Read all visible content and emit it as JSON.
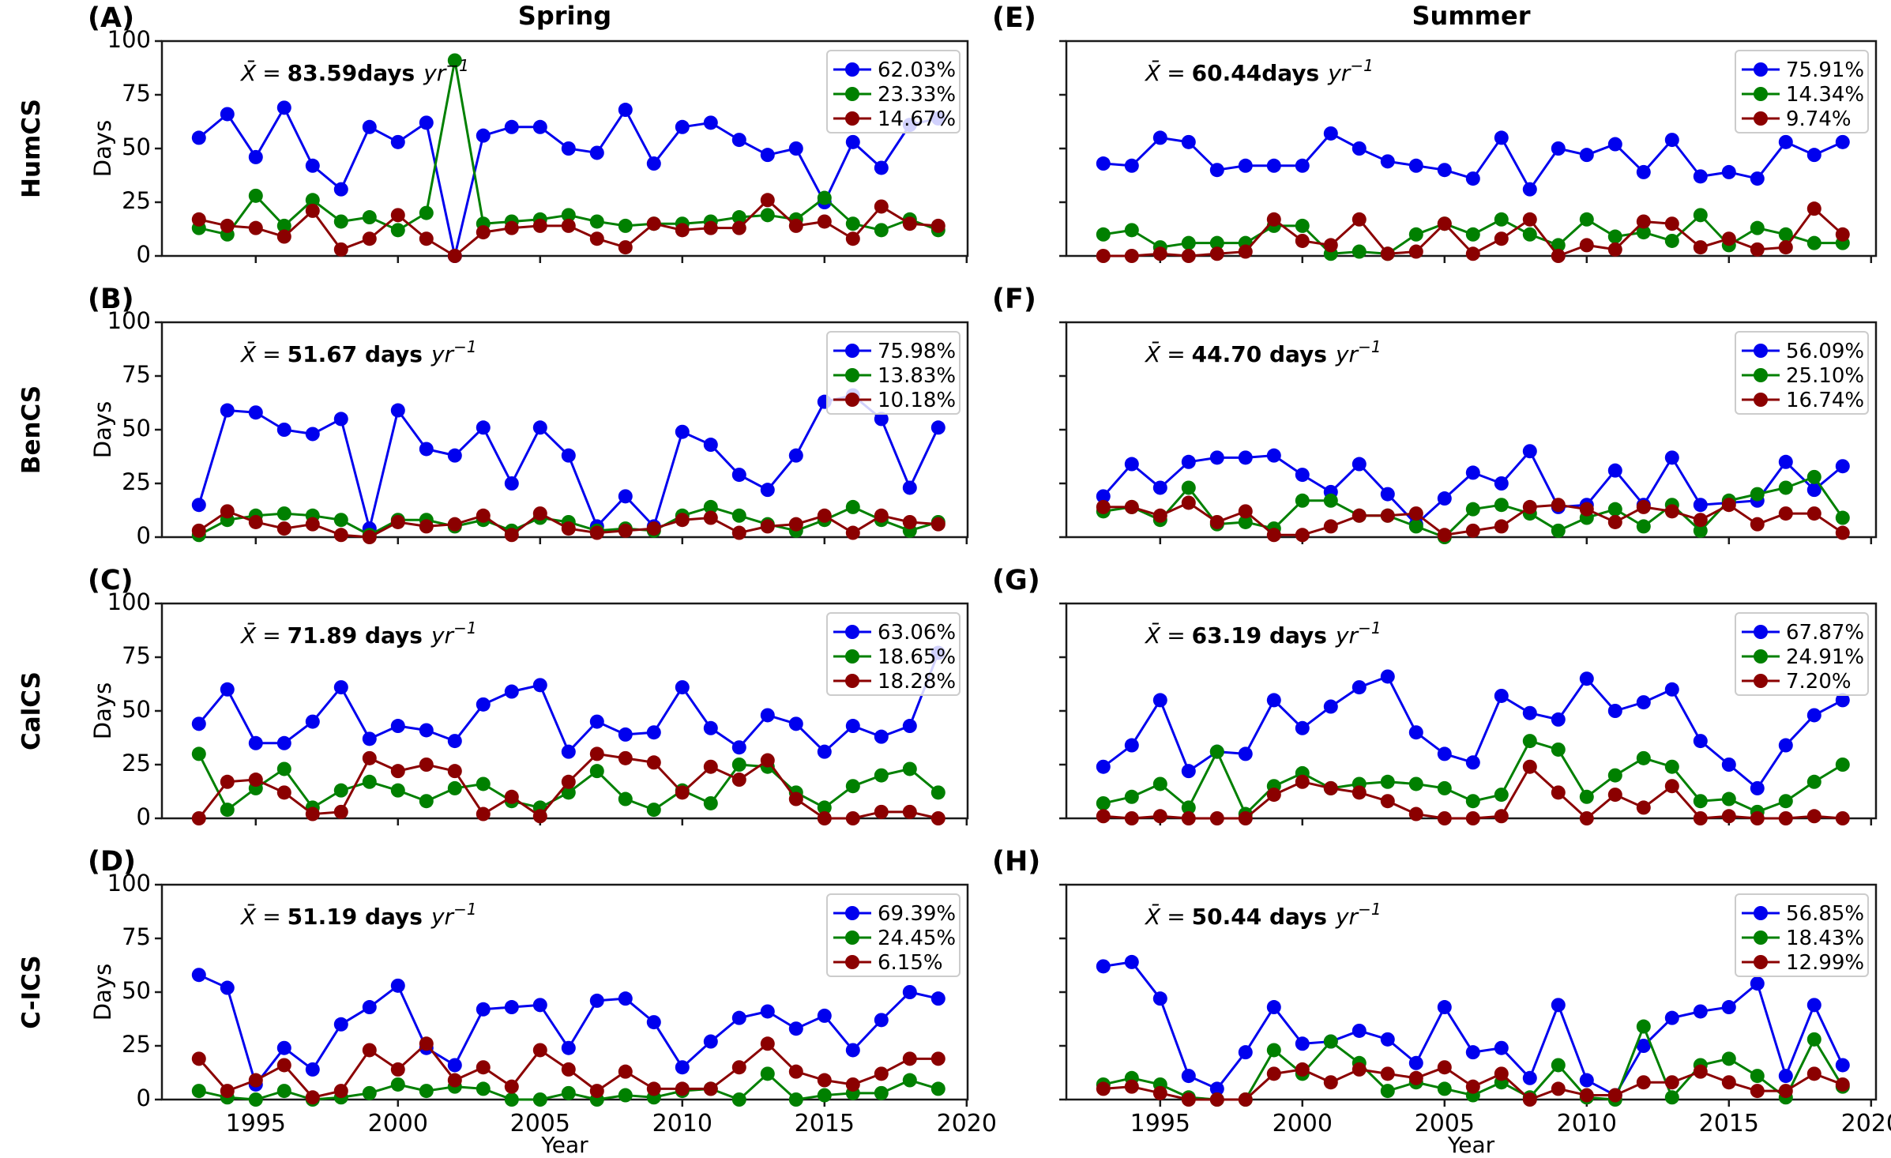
{
  "figure": {
    "column_titles": [
      "Spring",
      "Summer"
    ],
    "row_labels": [
      "HumCS",
      "BenCS",
      "CalCS",
      "C-ICS"
    ],
    "xlabel": "Year",
    "ylabel": "Days",
    "years": [
      1993,
      1994,
      1995,
      1996,
      1997,
      1998,
      1999,
      2000,
      2001,
      2002,
      2003,
      2004,
      2005,
      2006,
      2007,
      2008,
      2009,
      2010,
      2011,
      2012,
      2013,
      2014,
      2015,
      2016,
      2017,
      2018,
      2019
    ],
    "colors": {
      "blue": "#0000ee",
      "green": "#008000",
      "dark_red": "#8b0000"
    },
    "spine_color": "#1a1a1a"
  },
  "chart_data": [
    {
      "panel": "(A)",
      "season": "Spring",
      "system": "HumCS",
      "type": "line",
      "ylim": [
        0,
        100
      ],
      "yticks": [
        0,
        25,
        50,
        75,
        100
      ],
      "xticks": [
        1995,
        2000,
        2005,
        2010,
        2015,
        2020
      ],
      "legend_position": "upper right",
      "mean_annotation": {
        "symbol": "X̄",
        "eq": "=",
        "value": "83.59days",
        "unit": "yr",
        "exponent": "−1",
        "display": "X̄ = 83.59days yr⁻¹"
      },
      "series": [
        {
          "label": "62.03%",
          "color": "#0000ee",
          "values": [
            55,
            66,
            46,
            69,
            42,
            31,
            60,
            53,
            62,
            0,
            56,
            60,
            60,
            50,
            48,
            68,
            43,
            60,
            62,
            54,
            47,
            50,
            25,
            53,
            41,
            61,
            64
          ]
        },
        {
          "label": "23.33%",
          "color": "#008000",
          "values": [
            13,
            10,
            28,
            14,
            26,
            16,
            18,
            12,
            20,
            91,
            15,
            16,
            17,
            19,
            16,
            14,
            15,
            15,
            16,
            18,
            19,
            17,
            27,
            15,
            12,
            17,
            12
          ]
        },
        {
          "label": "14.67%",
          "color": "#8b0000",
          "values": [
            17,
            14,
            13,
            9,
            21,
            3,
            8,
            19,
            8,
            0,
            11,
            13,
            14,
            14,
            8,
            4,
            15,
            12,
            13,
            13,
            26,
            14,
            16,
            8,
            23,
            15,
            14
          ]
        }
      ]
    },
    {
      "panel": "(B)",
      "season": "Spring",
      "system": "BenCS",
      "type": "line",
      "ylim": [
        0,
        100
      ],
      "yticks": [
        0,
        25,
        50,
        75,
        100
      ],
      "xticks": [
        1995,
        2000,
        2005,
        2010,
        2015,
        2020
      ],
      "legend_position": "upper right",
      "mean_annotation": {
        "symbol": "X̄",
        "eq": "=",
        "value": "51.67 days",
        "unit": "yr",
        "exponent": "−1",
        "display": "X̄ = 51.67 days yr⁻¹"
      },
      "series": [
        {
          "label": "75.98%",
          "color": "#0000ee",
          "values": [
            15,
            59,
            58,
            50,
            48,
            55,
            4,
            59,
            41,
            38,
            51,
            25,
            51,
            38,
            5,
            19,
            5,
            49,
            43,
            29,
            22,
            38,
            63,
            66,
            55,
            23,
            51
          ]
        },
        {
          "label": "13.83%",
          "color": "#008000",
          "values": [
            1,
            8,
            10,
            11,
            10,
            8,
            1,
            8,
            8,
            5,
            8,
            3,
            9,
            7,
            3,
            4,
            3,
            10,
            14,
            10,
            6,
            3,
            8,
            14,
            8,
            3,
            7
          ]
        },
        {
          "label": "10.18%",
          "color": "#8b0000",
          "values": [
            3,
            12,
            7,
            4,
            6,
            1,
            0,
            7,
            5,
            6,
            10,
            1,
            11,
            4,
            2,
            3,
            4,
            8,
            9,
            2,
            5,
            6,
            10,
            2,
            10,
            7,
            6
          ]
        }
      ]
    },
    {
      "panel": "(C)",
      "season": "Spring",
      "system": "CalCS",
      "type": "line",
      "ylim": [
        0,
        100
      ],
      "yticks": [
        0,
        25,
        50,
        75,
        100
      ],
      "xticks": [
        1995,
        2000,
        2005,
        2010,
        2015,
        2020
      ],
      "legend_position": "upper right",
      "mean_annotation": {
        "symbol": "X̄",
        "eq": "=",
        "value": "71.89 days",
        "unit": "yr",
        "exponent": "−1",
        "display": "X̄ = 71.89 days yr⁻¹"
      },
      "series": [
        {
          "label": "63.06%",
          "color": "#0000ee",
          "values": [
            44,
            60,
            35,
            35,
            45,
            61,
            37,
            43,
            41,
            36,
            53,
            59,
            62,
            31,
            45,
            39,
            40,
            61,
            42,
            33,
            48,
            44,
            31,
            43,
            38,
            43,
            77
          ]
        },
        {
          "label": "18.65%",
          "color": "#008000",
          "values": [
            30,
            4,
            14,
            23,
            5,
            13,
            17,
            13,
            8,
            14,
            16,
            8,
            5,
            12,
            22,
            9,
            4,
            13,
            7,
            25,
            24,
            12,
            5,
            15,
            20,
            23,
            12
          ]
        },
        {
          "label": "18.28%",
          "color": "#8b0000",
          "values": [
            0,
            17,
            18,
            12,
            2,
            3,
            28,
            22,
            25,
            22,
            2,
            10,
            1,
            17,
            30,
            28,
            26,
            12,
            24,
            18,
            27,
            9,
            0,
            0,
            3,
            3,
            0
          ]
        }
      ]
    },
    {
      "panel": "(D)",
      "season": "Spring",
      "system": "C-ICS",
      "type": "line",
      "ylim": [
        0,
        100
      ],
      "yticks": [
        0,
        25,
        50,
        75,
        100
      ],
      "xticks": [
        1995,
        2000,
        2005,
        2010,
        2015,
        2020
      ],
      "legend_position": "upper right",
      "mean_annotation": {
        "symbol": "X̄",
        "eq": "=",
        "value": "51.19 days",
        "unit": "yr",
        "exponent": "−1",
        "display": "X̄ = 51.19 days yr⁻¹"
      },
      "series": [
        {
          "label": "69.39%",
          "color": "#0000ee",
          "values": [
            58,
            52,
            7,
            24,
            14,
            35,
            43,
            53,
            24,
            16,
            42,
            43,
            44,
            24,
            46,
            47,
            36,
            15,
            27,
            38,
            41,
            33,
            39,
            23,
            37,
            50,
            47
          ]
        },
        {
          "label": "24.45%",
          "color": "#008000",
          "values": [
            4,
            1,
            0,
            4,
            0,
            1,
            3,
            7,
            4,
            6,
            5,
            0,
            0,
            3,
            0,
            2,
            1,
            4,
            5,
            0,
            12,
            0,
            2,
            3,
            3,
            9,
            5
          ]
        },
        {
          "label": "6.15%",
          "color": "#8b0000",
          "values": [
            19,
            4,
            9,
            16,
            1,
            4,
            23,
            14,
            26,
            9,
            15,
            6,
            23,
            14,
            4,
            13,
            5,
            5,
            5,
            15,
            26,
            13,
            9,
            7,
            12,
            19,
            19
          ]
        }
      ]
    },
    {
      "panel": "(E)",
      "season": "Summer",
      "system": "HumCS",
      "type": "line",
      "ylim": [
        0,
        100
      ],
      "yticks": [
        0,
        25,
        50,
        75,
        100
      ],
      "xticks": [
        1995,
        2000,
        2005,
        2010,
        2015,
        2020
      ],
      "legend_position": "upper right",
      "mean_annotation": {
        "symbol": "X̄",
        "eq": "=",
        "value": "60.44days",
        "unit": "yr",
        "exponent": "−1",
        "display": "X̄ = 60.44days yr⁻¹"
      },
      "series": [
        {
          "label": "75.91%",
          "color": "#0000ee",
          "values": [
            43,
            42,
            55,
            53,
            40,
            42,
            42,
            42,
            57,
            50,
            44,
            42,
            40,
            36,
            55,
            31,
            50,
            47,
            52,
            39,
            54,
            37,
            39,
            36,
            53,
            47,
            53
          ]
        },
        {
          "label": "14.34%",
          "color": "#008000",
          "values": [
            10,
            12,
            4,
            6,
            6,
            6,
            14,
            14,
            1,
            2,
            1,
            10,
            15,
            10,
            17,
            10,
            5,
            17,
            9,
            11,
            7,
            19,
            5,
            13,
            10,
            6,
            6
          ]
        },
        {
          "label": "9.74%",
          "color": "#8b0000",
          "values": [
            0,
            0,
            1,
            0,
            1,
            2,
            17,
            7,
            5,
            17,
            1,
            2,
            15,
            1,
            8,
            17,
            0,
            5,
            3,
            16,
            15,
            4,
            8,
            3,
            4,
            22,
            10
          ]
        }
      ]
    },
    {
      "panel": "(F)",
      "season": "Summer",
      "system": "BenCS",
      "type": "line",
      "ylim": [
        0,
        100
      ],
      "yticks": [
        0,
        25,
        50,
        75,
        100
      ],
      "xticks": [
        1995,
        2000,
        2005,
        2010,
        2015,
        2020
      ],
      "legend_position": "upper right",
      "mean_annotation": {
        "symbol": "X̄",
        "eq": "=",
        "value": "44.70 days",
        "unit": "yr",
        "exponent": "−1",
        "display": "X̄ = 44.70 days yr⁻¹"
      },
      "series": [
        {
          "label": "56.09%",
          "color": "#0000ee",
          "values": [
            19,
            34,
            23,
            35,
            37,
            37,
            38,
            29,
            21,
            34,
            20,
            6,
            18,
            30,
            25,
            40,
            14,
            15,
            31,
            15,
            37,
            15,
            16,
            17,
            35,
            22,
            33
          ]
        },
        {
          "label": "25.10%",
          "color": "#008000",
          "values": [
            12,
            14,
            8,
            23,
            6,
            7,
            4,
            17,
            17,
            10,
            10,
            5,
            0,
            13,
            15,
            11,
            3,
            9,
            13,
            5,
            15,
            3,
            17,
            20,
            23,
            28,
            9
          ]
        },
        {
          "label": "16.74%",
          "color": "#8b0000",
          "values": [
            14,
            14,
            10,
            16,
            7,
            12,
            1,
            1,
            5,
            10,
            10,
            11,
            1,
            3,
            5,
            14,
            15,
            13,
            7,
            14,
            12,
            8,
            15,
            6,
            11,
            11,
            2
          ]
        }
      ]
    },
    {
      "panel": "(G)",
      "season": "Summer",
      "system": "CalCS",
      "type": "line",
      "ylim": [
        0,
        100
      ],
      "yticks": [
        0,
        25,
        50,
        75,
        100
      ],
      "xticks": [
        1995,
        2000,
        2005,
        2010,
        2015,
        2020
      ],
      "legend_position": "upper right",
      "mean_annotation": {
        "symbol": "X̄",
        "eq": "=",
        "value": "63.19 days",
        "unit": "yr",
        "exponent": "−1",
        "display": "X̄ = 63.19 days yr⁻¹"
      },
      "series": [
        {
          "label": "67.87%",
          "color": "#0000ee",
          "values": [
            24,
            34,
            55,
            22,
            31,
            30,
            55,
            42,
            52,
            61,
            66,
            40,
            30,
            26,
            57,
            49,
            46,
            65,
            50,
            54,
            60,
            36,
            25,
            14,
            34,
            48,
            55
          ]
        },
        {
          "label": "24.91%",
          "color": "#008000",
          "values": [
            7,
            10,
            16,
            5,
            31,
            2,
            15,
            21,
            14,
            16,
            17,
            16,
            14,
            8,
            11,
            36,
            32,
            10,
            20,
            28,
            24,
            8,
            9,
            3,
            8,
            17,
            25
          ]
        },
        {
          "label": "7.20%",
          "color": "#8b0000",
          "values": [
            1,
            0,
            1,
            0,
            0,
            0,
            11,
            17,
            14,
            12,
            8,
            2,
            0,
            0,
            1,
            24,
            12,
            0,
            11,
            5,
            15,
            0,
            1,
            0,
            0,
            1,
            0
          ]
        }
      ]
    },
    {
      "panel": "(H)",
      "season": "Summer",
      "system": "C-ICS",
      "type": "line",
      "ylim": [
        0,
        100
      ],
      "yticks": [
        0,
        25,
        50,
        75,
        100
      ],
      "xticks": [
        1995,
        2000,
        2005,
        2010,
        2015,
        2020
      ],
      "legend_position": "upper right",
      "mean_annotation": {
        "symbol": "X̄",
        "eq": "=",
        "value": "50.44 days",
        "unit": "yr",
        "exponent": "−1",
        "display": "X̄ = 50.44 days yr⁻¹"
      },
      "series": [
        {
          "label": "56.85%",
          "color": "#0000ee",
          "values": [
            62,
            64,
            47,
            11,
            5,
            22,
            43,
            26,
            27,
            32,
            28,
            17,
            43,
            22,
            24,
            10,
            44,
            9,
            2,
            25,
            38,
            41,
            43,
            54,
            11,
            44,
            16
          ]
        },
        {
          "label": "18.43%",
          "color": "#008000",
          "values": [
            7,
            10,
            7,
            1,
            0,
            0,
            23,
            12,
            27,
            17,
            4,
            8,
            5,
            2,
            8,
            1,
            16,
            1,
            0,
            34,
            1,
            16,
            19,
            11,
            1,
            28,
            6
          ]
        },
        {
          "label": "12.99%",
          "color": "#8b0000",
          "values": [
            5,
            6,
            3,
            0,
            0,
            0,
            12,
            14,
            8,
            14,
            12,
            10,
            15,
            6,
            12,
            0,
            5,
            2,
            2,
            8,
            8,
            13,
            8,
            4,
            4,
            12,
            7
          ]
        }
      ]
    }
  ]
}
